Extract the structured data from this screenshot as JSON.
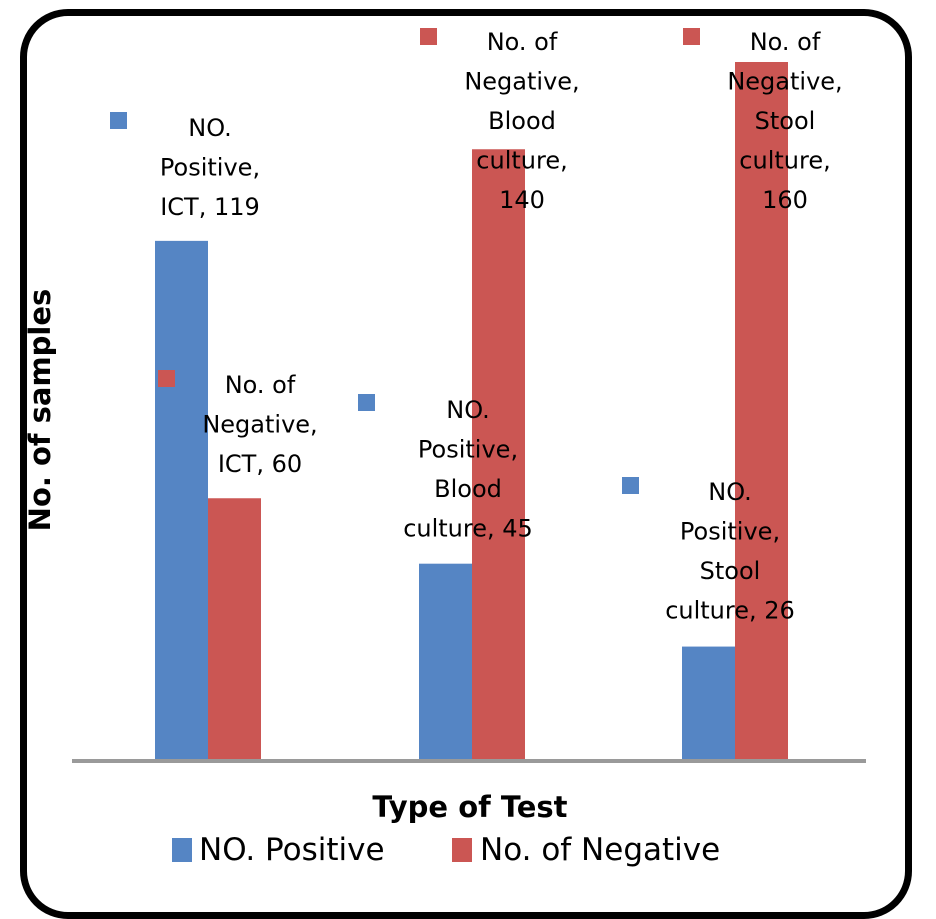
{
  "chart_data": {
    "type": "bar",
    "xlabel": "Type of Test",
    "ylabel": "No. of samples",
    "categories": [
      "ICT",
      "Blood culture",
      "Stool culture"
    ],
    "series": [
      {
        "name": "NO. Positive",
        "color": "#5585c4",
        "values": [
          119,
          45,
          26
        ]
      },
      {
        "name": "No. of Negative",
        "color": "#cb5653",
        "values": [
          60,
          140,
          160
        ]
      }
    ],
    "ylim": [
      0,
      160
    ],
    "grid": false,
    "legend": "bottom",
    "data_labels": [
      [
        [
          "NO.",
          "Positive,",
          "ICT, 119"
        ],
        [
          "NO.",
          "Positive,",
          "Blood",
          "culture, 45"
        ],
        [
          "NO.",
          "Positive,",
          "Stool",
          "culture, 26"
        ]
      ],
      [
        [
          "No. of",
          "Negative,",
          "ICT, 60"
        ],
        [
          "No. of",
          "Negative,",
          "Blood",
          "culture,",
          "140"
        ],
        [
          "No. of",
          "Negative,",
          "Stool",
          "culture,",
          "160"
        ]
      ]
    ]
  }
}
